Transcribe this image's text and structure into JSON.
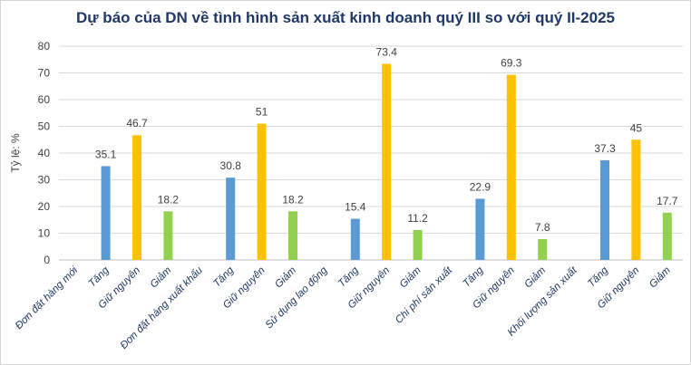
{
  "chart_data": {
    "type": "bar",
    "title": "Dự báo của DN về tình hình sản xuất kinh doanh quý III so với quý II-2025",
    "ylabel": "Tỷ lệ: %",
    "xlabel": "",
    "ylim": [
      0,
      80
    ],
    "yticks": [
      0,
      10,
      20,
      30,
      40,
      50,
      60,
      70,
      80
    ],
    "grid": true,
    "groups": [
      {
        "name": "Đơn đặt hàng mới",
        "values": {
          "Tăng": 35.1,
          "Giữ nguyên": 46.7,
          "Giảm": 18.2
        }
      },
      {
        "name": "Đơn đặt hàng xuất khẩu",
        "values": {
          "Tăng": 30.8,
          "Giữ nguyên": 51,
          "Giảm": 18.2
        }
      },
      {
        "name": "Sử dụng lao động",
        "values": {
          "Tăng": 15.4,
          "Giữ nguyên": 73.4,
          "Giảm": 11.2
        }
      },
      {
        "name": "Chi phí sản xuất",
        "values": {
          "Tăng": 22.9,
          "Giữ nguyên": 69.3,
          "Giảm": 7.8
        }
      },
      {
        "name": "Khối lượng sản xuất",
        "values": {
          "Tăng": 37.3,
          "Giữ nguyên": 45,
          "Giảm": 17.7
        }
      }
    ],
    "subcategories": [
      "Tăng",
      "Giữ nguyên",
      "Giảm"
    ],
    "colors": {
      "Tăng": "#5b9bd5",
      "Giữ nguyên": "#ffc000",
      "Giảm": "#92d050",
      "group_label": "#1f3864",
      "sub_label": "#1f3864",
      "grid": "#d9d9d9",
      "axis": "#bfbfbf"
    }
  }
}
